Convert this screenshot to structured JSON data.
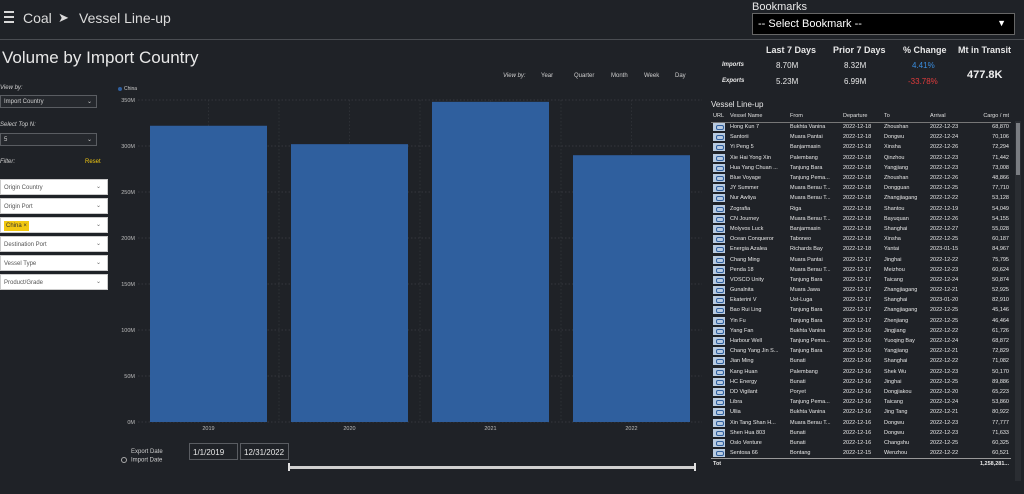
{
  "header": {
    "menu_icon": "hamburger-menu-icon",
    "crumb1": "Coal",
    "crumb_sep": "➤",
    "crumb2": "Vessel Line-up"
  },
  "bookmarks": {
    "label": "Bookmarks",
    "selected": "-- Select Bookmark --",
    "caret": "▼"
  },
  "page_title": "Volume by Import Country",
  "kpis": {
    "headers": [
      "Last 7 Days",
      "Prior 7 Days",
      "% Change",
      "Mt in Transit"
    ],
    "imports": {
      "label": "Imports",
      "last7": "8.70M",
      "prior7": "8.32M",
      "pct": "4.41%"
    },
    "exports": {
      "label": "Exports",
      "last7": "5.23M",
      "prior7": "6.99M",
      "pct": "-33.78%"
    },
    "mt_in_transit": "477.8K",
    "colors": {
      "positive": "#3a8dde",
      "negative": "#e03c3c"
    }
  },
  "left_panel": {
    "view_by_label": "View by:",
    "view_by_value": "Import Country",
    "top_n_label": "Select Top N:",
    "top_n_value": "5",
    "filter_label": "Filter:",
    "reset_label": "Reset",
    "filters": [
      {
        "label": "Origin Country"
      },
      {
        "label": "Origin Port"
      },
      {
        "label": "China",
        "chip": true
      },
      {
        "label": "Destination Port"
      },
      {
        "label": "Vessel Type"
      },
      {
        "label": "Product/Grade"
      }
    ]
  },
  "view_by_time": {
    "label": "View by:",
    "options": [
      "Year",
      "Quarter",
      "Month",
      "Week",
      "Day"
    ]
  },
  "chart_data": {
    "type": "bar",
    "categories": [
      "2019",
      "2020",
      "2021",
      "2022"
    ],
    "series": [
      {
        "name": "China",
        "values": [
          322,
          302,
          348,
          290
        ],
        "color": "#2f5f9e"
      }
    ],
    "ylim": [
      0,
      350
    ],
    "yticks": [
      0,
      50,
      100,
      150,
      200,
      250,
      300,
      350
    ],
    "ytick_labels": [
      "0M",
      "50M",
      "100M",
      "150M",
      "200M",
      "250M",
      "300M",
      "350M"
    ],
    "grid": true,
    "legend": "top-left"
  },
  "date_range": {
    "export_label": "Export Date",
    "import_label": "Import Date",
    "start": "1/1/2019",
    "end": "12/31/2022"
  },
  "vessel_lineup": {
    "title": "Vessel Line-up",
    "columns": [
      "URL",
      "Vessel Name",
      "From",
      "Departure",
      "To",
      "Arrival",
      "Cargo / mt"
    ],
    "rows": [
      [
        "Hong Kun 7",
        "Bukhta Vanina",
        "2022-12-18",
        "Zhoushan",
        "2022-12-23",
        "68,870"
      ],
      [
        "Santorii",
        "Muara Pantai",
        "2022-12-18",
        "Dongwu",
        "2022-12-24",
        "70,106"
      ],
      [
        "Yi Peng 5",
        "Banjarmasin",
        "2022-12-18",
        "Xinsha",
        "2022-12-26",
        "72,294"
      ],
      [
        "Xie Hai Yong Xin",
        "Palembang",
        "2022-12-18",
        "Qinzhou",
        "2022-12-23",
        "71,442"
      ],
      [
        "Hua Yang Chuan ...",
        "Tanjung Bara",
        "2022-12-18",
        "Yangjiang",
        "2022-12-23",
        "73,008"
      ],
      [
        "Blue Voyage",
        "Tanjung Pema...",
        "2022-12-18",
        "Zhoushan",
        "2022-12-26",
        "48,866"
      ],
      [
        "JY Summer",
        "Muara Berau T...",
        "2022-12-18",
        "Dongguan",
        "2022-12-25",
        "77,710"
      ],
      [
        "Nur Awliya",
        "Muara Berau T...",
        "2022-12-18",
        "Zhangjiagang",
        "2022-12-22",
        "53,128"
      ],
      [
        "Zografia",
        "Riga",
        "2022-12-18",
        "Shantou",
        "2022-12-19",
        "54,049"
      ],
      [
        "CN Journey",
        "Muara Berau T...",
        "2022-12-18",
        "Bayuquan",
        "2022-12-26",
        "54,155"
      ],
      [
        "Molyvos Luck",
        "Banjarmasin",
        "2022-12-18",
        "Shanghai",
        "2022-12-27",
        "55,028"
      ],
      [
        "Ocean Conqueror",
        "Taboneo",
        "2022-12-18",
        "Xinsha",
        "2022-12-25",
        "60,187"
      ],
      [
        "Energia Azalea",
        "Richards Bay",
        "2022-12-18",
        "Yantai",
        "2023-01-15",
        "84,967"
      ],
      [
        "Chang Ming",
        "Muara Pantai",
        "2022-12-17",
        "Jinghai",
        "2022-12-22",
        "75,795"
      ],
      [
        "Penda 18",
        "Muara Berau T...",
        "2022-12-17",
        "Meizhou",
        "2022-12-23",
        "60,624"
      ],
      [
        "VOSCO Unity",
        "Tanjung Bara",
        "2022-12-17",
        "Taicang",
        "2022-12-24",
        "50,874"
      ],
      [
        "Gunalnita",
        "Muara Jawa",
        "2022-12-17",
        "Zhangjiagang",
        "2022-12-21",
        "52,925"
      ],
      [
        "Ekaterini V",
        "Ust-Luga",
        "2022-12-17",
        "Shanghai",
        "2023-01-20",
        "82,910"
      ],
      [
        "Bao Rui Ling",
        "Tanjung Bara",
        "2022-12-17",
        "Zhangjiagang",
        "2022-12-25",
        "45,146"
      ],
      [
        "Yin Fu",
        "Tanjung Bara",
        "2022-12-17",
        "Zhenjiang",
        "2022-12-25",
        "46,464"
      ],
      [
        "Yang Fan",
        "Bukhta Vanina",
        "2022-12-16",
        "Jingjiang",
        "2022-12-22",
        "61,726"
      ],
      [
        "Harbour Well",
        "Tanjung Pema...",
        "2022-12-16",
        "Yuoqing Bay",
        "2022-12-24",
        "68,872"
      ],
      [
        "Chang Yang Jin S...",
        "Tanjung Bara",
        "2022-12-16",
        "Yangjiang",
        "2022-12-21",
        "72,829"
      ],
      [
        "Jian Ming",
        "Bunati",
        "2022-12-16",
        "Shanghai",
        "2022-12-22",
        "71,082"
      ],
      [
        "Kang Huan",
        "Palembang",
        "2022-12-16",
        "Shek Wu",
        "2022-12-23",
        "50,170"
      ],
      [
        "HC Energy",
        "Bunati",
        "2022-12-16",
        "Jinghai",
        "2022-12-25",
        "89,886"
      ],
      [
        "DD Vigilant",
        "Poryet",
        "2022-12-16",
        "Dongjiakou",
        "2022-12-20",
        "65,223"
      ],
      [
        "Libra",
        "Tanjung Pema...",
        "2022-12-16",
        "Taicang",
        "2022-12-24",
        "53,860"
      ],
      [
        "Ullia",
        "Bukhta Vanina",
        "2022-12-16",
        "Jing Tang",
        "2022-12-21",
        "80,922"
      ],
      [
        "Xin Tang Shan H...",
        "Muara Berau T...",
        "2022-12-16",
        "Dongwu",
        "2022-12-23",
        "77,777"
      ],
      [
        "Shen Hua 803",
        "Bunati",
        "2022-12-16",
        "Dongwu",
        "2022-12-23",
        "71,633"
      ],
      [
        "Oslo Venture",
        "Bunati",
        "2022-12-16",
        "Changshu",
        "2022-12-25",
        "60,325"
      ],
      [
        "Sentosa 66",
        "Bontang",
        "2022-12-15",
        "Wenzhou",
        "2022-12-22",
        "60,521"
      ]
    ],
    "total_label": "Tot",
    "total_value": "1,258,281..."
  }
}
